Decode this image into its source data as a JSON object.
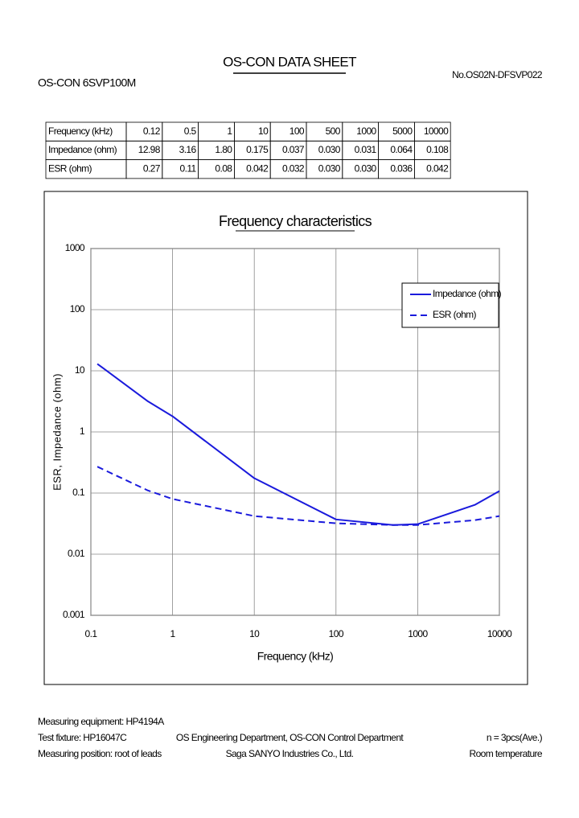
{
  "header": {
    "title": "OS-CON DATA SHEET",
    "model": "OS-CON 6SVP100M",
    "doc_no": "No.OS02N-DFSVP022"
  },
  "table": {
    "rows": [
      [
        "Frequency (kHz)",
        "0.12",
        "0.5",
        "1",
        "10",
        "100",
        "500",
        "1000",
        "5000",
        "10000"
      ],
      [
        "Impedance (ohm)",
        "12.98",
        "3.16",
        "1.80",
        "0.175",
        "0.037",
        "0.030",
        "0.031",
        "0.064",
        "0.108"
      ],
      [
        "ESR (ohm)",
        "0.27",
        "0.11",
        "0.08",
        "0.042",
        "0.032",
        "0.030",
        "0.030",
        "0.036",
        "0.042"
      ]
    ]
  },
  "chart_data": {
    "type": "line",
    "title": "Frequency characteristics",
    "x_label": "Frequency (kHz)",
    "y_label": "ESR, Impedance (ohm)",
    "x": [
      0.12,
      0.5,
      1,
      10,
      100,
      500,
      1000,
      5000,
      10000
    ],
    "series": [
      {
        "name": "Impedance (ohm)",
        "color": "#1a1adc",
        "dash": false,
        "values": [
          12.98,
          3.16,
          1.8,
          0.175,
          0.037,
          0.03,
          0.031,
          0.064,
          0.108
        ]
      },
      {
        "name": "ESR (ohm)",
        "color": "#1a1adc",
        "dash": true,
        "values": [
          0.27,
          0.11,
          0.08,
          0.042,
          0.032,
          0.03,
          0.03,
          0.036,
          0.042
        ]
      }
    ],
    "log_x": true,
    "log_y": true,
    "xlim": [
      0.1,
      10000
    ],
    "xticks": [
      0.1,
      1,
      10,
      100,
      1000,
      10000
    ],
    "ylim": [
      0.001,
      1000
    ],
    "yticks": [
      0.001,
      0.01,
      0.1,
      1,
      10,
      100,
      1000
    ],
    "grid": true,
    "legend": "upper right"
  },
  "footer": {
    "left": [
      "Measuring equipment: HP4194A",
      "Test fixture: HP16047C",
      "Measuring position: root of leads"
    ],
    "center": [
      "OS Engineering Department, OS-CON Control Department",
      "Saga SANYO Industries Co., Ltd."
    ],
    "right": [
      "n = 3pcs(Ave.)",
      "Room temperature"
    ]
  }
}
